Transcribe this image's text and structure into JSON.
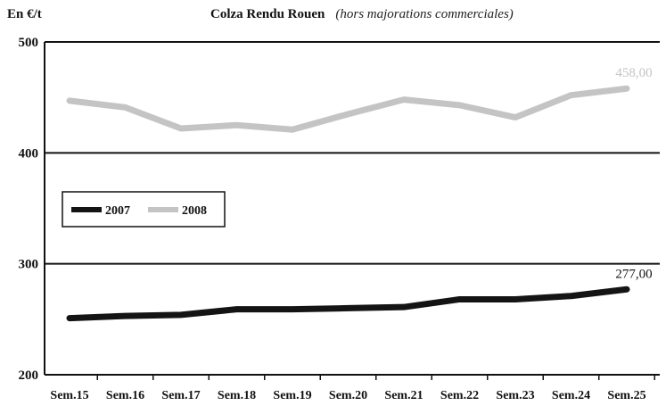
{
  "header": {
    "unit": "En €/t",
    "title": "Colza Rendu Rouen",
    "subtitle": "(hors majorations commerciales)"
  },
  "legend": {
    "items": [
      {
        "label": "2007",
        "color": "#141414"
      },
      {
        "label": "2008",
        "color": "#c4c4c4"
      }
    ]
  },
  "chart_data": {
    "type": "line",
    "title": "Colza Rendu Rouen (hors majorations commerciales)",
    "ylabel": "En €/t",
    "xlabel": "",
    "ylim": [
      200,
      500
    ],
    "yticks": [
      "200",
      "300",
      "400",
      "500"
    ],
    "grid": "horizontal",
    "legend_position": "middle-left",
    "categories": [
      "Sem.15",
      "Sem.16",
      "Sem.17",
      "Sem.18",
      "Sem.19",
      "Sem.20",
      "Sem.21",
      "Sem.22",
      "Sem.23",
      "Sem.24",
      "Sem.25"
    ],
    "series": [
      {
        "name": "2007",
        "color": "#141414",
        "values": [
          251,
          253,
          254,
          259,
          259,
          260,
          261,
          268,
          268,
          271,
          277
        ]
      },
      {
        "name": "2008",
        "color": "#c4c4c4",
        "values": [
          447,
          441,
          422,
          425,
          421,
          435,
          448,
          443,
          432,
          452,
          458
        ]
      }
    ],
    "annotations": [
      {
        "series": "2008",
        "category": "Sem.25",
        "text": "458,00",
        "color": "#c4c4c4"
      },
      {
        "series": "2007",
        "category": "Sem.25",
        "text": "277,00",
        "color": "#141414"
      }
    ]
  }
}
